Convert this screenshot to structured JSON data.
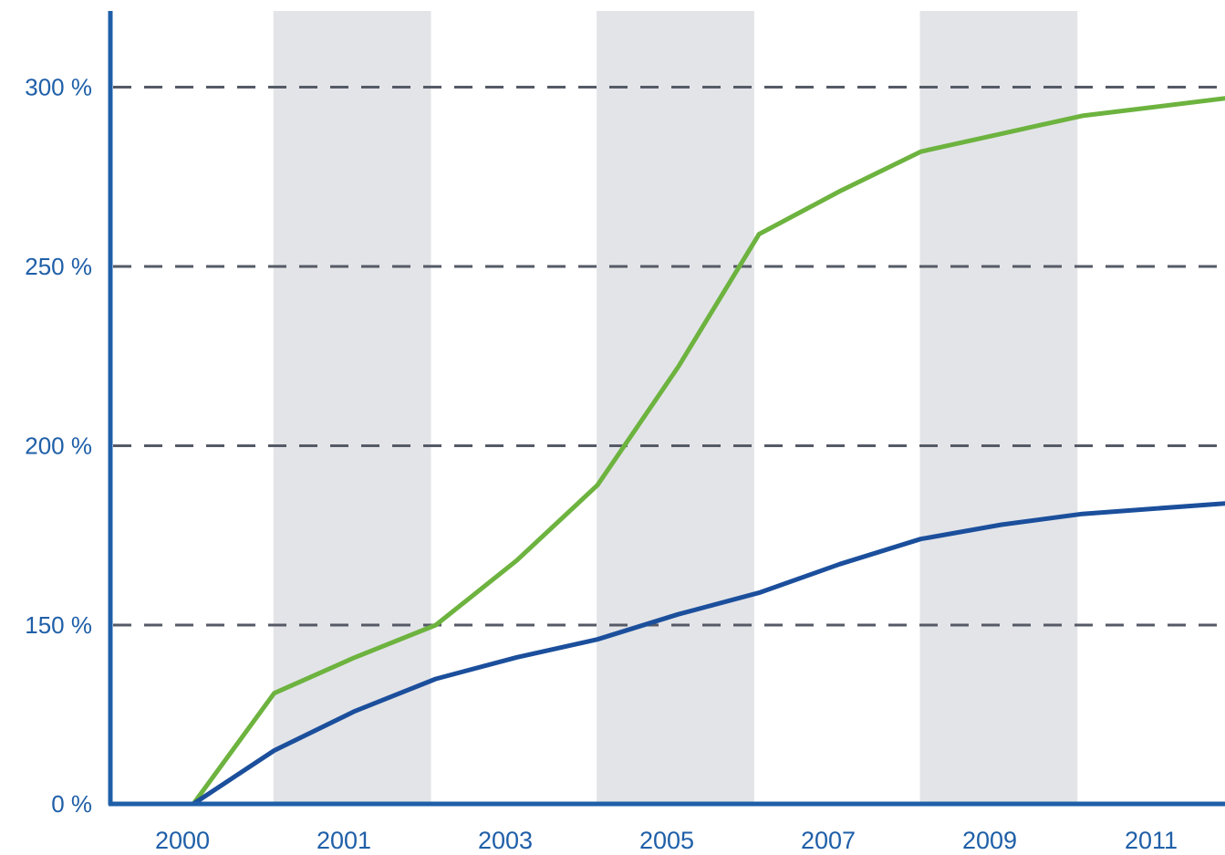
{
  "chart_data": {
    "type": "line",
    "x": [
      2000,
      2001,
      2002,
      2003,
      2004,
      2005,
      2006,
      2007,
      2008,
      2009,
      2010,
      2011,
      2012
    ],
    "x_tick_labels": [
      "2000",
      "2001",
      "2003",
      "2005",
      "2007",
      "2009",
      "2011"
    ],
    "y_tick_labels": [
      "0 %",
      "150 %",
      "200 %",
      "250 %",
      "300 %"
    ],
    "y_ticks": [
      0,
      150,
      200,
      250,
      300
    ],
    "y_axis_break": true,
    "shaded_bands": [
      [
        2001,
        2002
      ],
      [
        2005,
        2006
      ],
      [
        2009,
        2010
      ]
    ],
    "grid": "horizontal dashed at 150, 200, 250, 300",
    "series": [
      {
        "color": "#6db33f",
        "values": [
          0,
          131,
          141,
          150,
          168,
          189,
          222,
          259,
          271,
          282,
          287,
          292,
          297
        ]
      },
      {
        "color": "#1b4f9c",
        "values": [
          0,
          115,
          126,
          135,
          141,
          146,
          153,
          159,
          167,
          174,
          178,
          181,
          184
        ]
      }
    ]
  }
}
